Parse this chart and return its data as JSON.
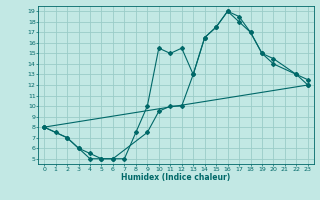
{
  "xlabel": "Humidex (Indice chaleur)",
  "bg_color": "#c2e8e4",
  "grid_color": "#9accc8",
  "line_color": "#006868",
  "xlim": [
    -0.5,
    23.5
  ],
  "ylim": [
    4.5,
    19.5
  ],
  "xticks": [
    0,
    1,
    2,
    3,
    4,
    5,
    6,
    7,
    8,
    9,
    10,
    11,
    12,
    13,
    14,
    15,
    16,
    17,
    18,
    19,
    20,
    21,
    22,
    23
  ],
  "yticks": [
    5,
    6,
    7,
    8,
    9,
    10,
    11,
    12,
    13,
    14,
    15,
    16,
    17,
    18,
    19
  ],
  "line1_x": [
    0,
    1,
    2,
    3,
    4,
    5,
    6,
    7,
    8,
    9,
    10,
    11,
    12,
    13,
    14,
    15,
    16,
    17,
    18,
    19,
    20,
    22,
    23
  ],
  "line1_y": [
    8,
    7.5,
    7,
    6,
    5,
    5,
    5,
    5,
    7.5,
    10,
    15.5,
    15,
    15.5,
    13,
    16.5,
    17.5,
    19,
    18.5,
    17,
    15,
    14.5,
    13,
    12.5
  ],
  "line2_x": [
    0,
    2,
    3,
    4,
    5,
    6,
    9,
    10,
    11,
    12,
    13,
    14,
    15,
    16,
    17,
    18,
    19,
    20,
    22,
    23
  ],
  "line2_y": [
    8,
    7,
    6,
    5.5,
    5,
    5,
    7.5,
    9.5,
    10,
    10,
    13,
    16.5,
    17.5,
    19,
    18,
    17,
    15,
    14,
    13,
    12
  ],
  "line3_x": [
    0,
    23
  ],
  "line3_y": [
    8,
    12
  ],
  "marker_size": 2.0,
  "line_width": 0.8,
  "tick_fontsize": 4.5,
  "xlabel_fontsize": 5.5
}
